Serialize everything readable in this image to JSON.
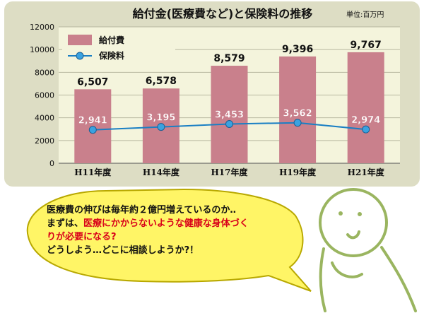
{
  "title": "給付金(医療費など)と保険料の推移",
  "unit": "単位:百万円",
  "chart_data": {
    "type": "bar",
    "categories": [
      "H11年度",
      "H14年度",
      "H17年度",
      "H19年度",
      "H21年度"
    ],
    "series": [
      {
        "name": "給付費",
        "type": "bar",
        "values": [
          6507,
          6578,
          8579,
          9396,
          9767
        ],
        "color": "#c9808c"
      },
      {
        "name": "保険料",
        "type": "line",
        "values": [
          2941,
          3195,
          3453,
          3562,
          2974
        ],
        "color": "#1a7fc4"
      }
    ],
    "data_labels": {
      "bars": [
        "6,507",
        "6,578",
        "8,579",
        "9,396",
        "9,767"
      ],
      "line": [
        "2,941",
        "3,195",
        "3,453",
        "3,562",
        "2,974"
      ]
    },
    "ylim": [
      0,
      12000
    ],
    "yticks": [
      "0",
      "2000",
      "4000",
      "6000",
      "8000",
      "10000",
      "12000"
    ],
    "legend_position": "top-left",
    "grid": true
  },
  "bubble": {
    "line1": "医療費の伸びは毎年約２億円増えているのか‥",
    "line2_prefix": "まずは、",
    "line2_red": "医療にかからないような健康な身体づく",
    "line3_red": "りが必要になる?",
    "line4": "どうしよう…どこに相談しようか?！"
  },
  "colors": {
    "bubble_fill": "#fff566",
    "bubble_stroke": "#b8a800",
    "figure_stroke": "#9ab560",
    "plot_bg": "#f4f4dc",
    "frame_bg": "#ddddc4"
  }
}
